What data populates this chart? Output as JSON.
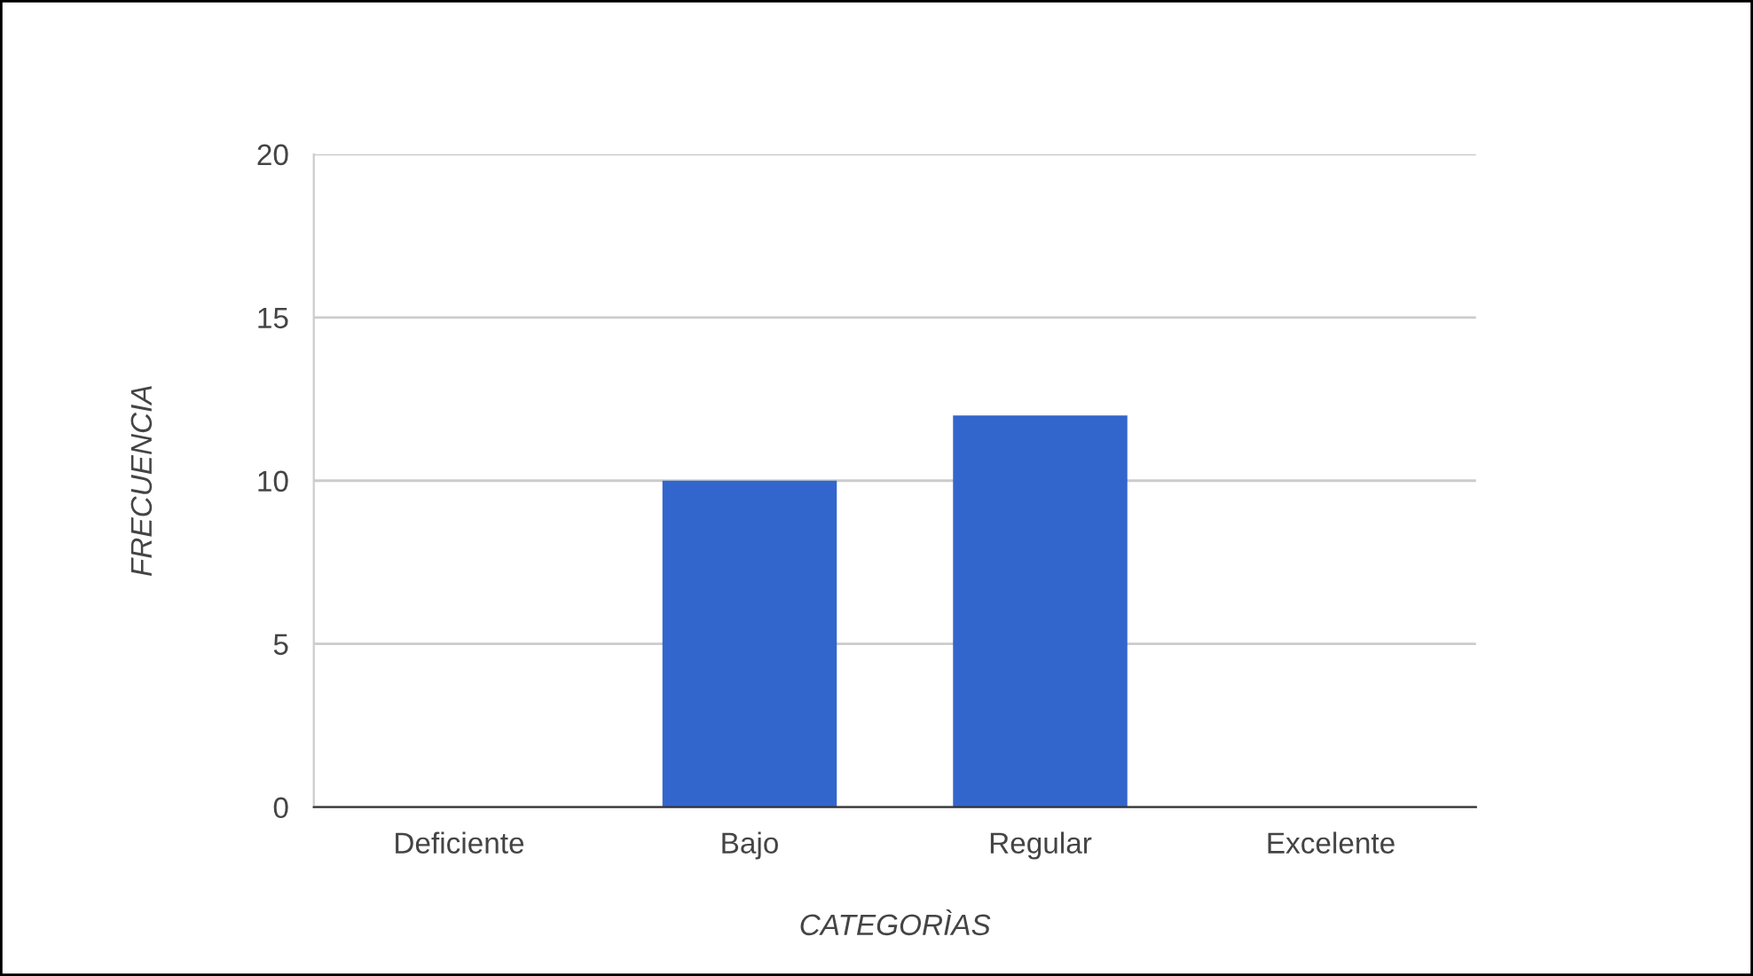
{
  "chart_data": {
    "type": "bar",
    "xlabel": "CATEGORÌAS",
    "ylabel": "FRECUENCIA",
    "categories": [
      "Deficiente",
      "Bajo",
      "Regular",
      "Excelente"
    ],
    "values": [
      0,
      10,
      12,
      0
    ],
    "color": "#3366cc",
    "ylim": [
      0,
      20
    ],
    "yticks": [
      0,
      5,
      10,
      15,
      20
    ],
    "grid": "y",
    "legend": false
  }
}
